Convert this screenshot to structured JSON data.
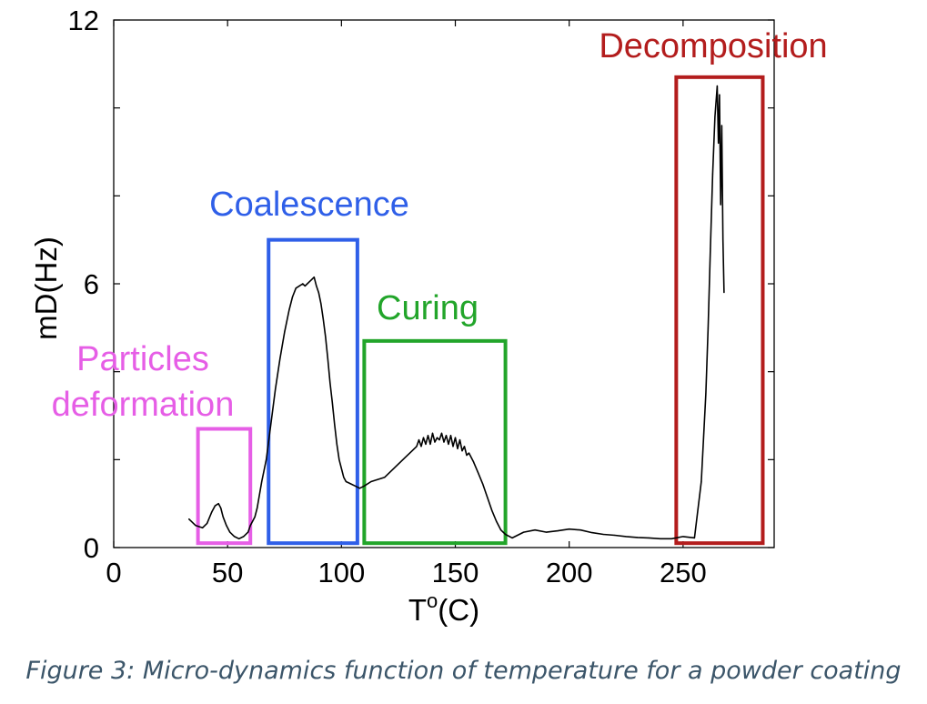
{
  "chart_data": {
    "type": "line",
    "title": "",
    "xlabel": "T°(C)",
    "xlabel_base": "T",
    "xlabel_sup": "o",
    "xlabel_unit": "(C)",
    "ylabel": "mD(Hz)",
    "xlim": [
      0,
      290
    ],
    "ylim": [
      0,
      12
    ],
    "xticks": [
      0,
      50,
      100,
      150,
      200,
      250
    ],
    "yticks": [
      0,
      6,
      12
    ],
    "yticks_minor": [
      2,
      4,
      8,
      10
    ],
    "grid": false,
    "series": [
      {
        "name": "mD",
        "color": "#000000",
        "x": [
          33,
          36,
          39,
          41,
          43,
          44.5,
          46,
          47,
          48,
          49.5,
          51,
          53,
          55,
          57,
          59,
          60,
          61,
          62,
          63,
          64,
          65,
          67,
          69,
          71,
          73,
          75,
          77,
          78.5,
          80,
          81.5,
          83,
          84,
          85,
          86,
          87,
          88,
          89,
          90,
          91,
          92,
          93,
          94,
          95,
          96,
          97,
          98,
          99,
          100,
          101,
          102,
          104,
          106,
          108,
          110,
          113,
          116,
          119,
          122,
          125,
          128,
          131,
          133,
          134,
          135,
          136,
          137,
          138,
          139,
          140,
          141,
          142,
          143,
          144,
          145,
          146,
          147,
          148,
          149,
          150,
          151,
          152,
          153,
          154,
          155,
          156,
          158,
          160,
          162,
          164,
          166,
          168,
          170,
          172,
          175,
          180,
          185,
          190,
          195,
          200,
          205,
          210,
          215,
          220,
          225,
          230,
          235,
          240,
          245,
          250,
          255,
          258,
          260,
          261,
          262,
          263,
          264,
          265,
          265.5,
          266,
          266.5,
          267,
          267.5,
          268
        ],
        "values": [
          0.65,
          0.5,
          0.45,
          0.55,
          0.8,
          0.95,
          1.0,
          0.9,
          0.7,
          0.5,
          0.35,
          0.25,
          0.2,
          0.25,
          0.35,
          0.5,
          0.6,
          0.7,
          0.9,
          1.2,
          1.5,
          2.0,
          2.8,
          3.6,
          4.3,
          4.9,
          5.4,
          5.7,
          5.9,
          5.95,
          6.0,
          5.95,
          6.0,
          6.05,
          6.1,
          6.15,
          5.95,
          5.8,
          5.55,
          5.2,
          4.8,
          4.3,
          3.75,
          3.3,
          2.8,
          2.35,
          2.0,
          1.8,
          1.6,
          1.5,
          1.45,
          1.4,
          1.35,
          1.4,
          1.5,
          1.55,
          1.6,
          1.75,
          1.9,
          2.05,
          2.2,
          2.3,
          2.45,
          2.3,
          2.5,
          2.35,
          2.55,
          2.35,
          2.6,
          2.4,
          2.5,
          2.45,
          2.6,
          2.4,
          2.55,
          2.35,
          2.55,
          2.3,
          2.5,
          2.25,
          2.45,
          2.2,
          2.3,
          2.1,
          2.15,
          1.95,
          1.7,
          1.45,
          1.15,
          0.85,
          0.6,
          0.4,
          0.3,
          0.22,
          0.35,
          0.4,
          0.35,
          0.38,
          0.42,
          0.4,
          0.34,
          0.3,
          0.28,
          0.25,
          0.23,
          0.22,
          0.2,
          0.2,
          0.25,
          0.22,
          1.5,
          3.5,
          5.0,
          6.8,
          8.5,
          9.8,
          10.5,
          9.2,
          10.3,
          7.8,
          9.6,
          7.0,
          5.8
        ]
      }
    ],
    "regions": [
      {
        "label": "Particles\ndeformation",
        "line1": "Particles",
        "line2": "deformation",
        "x_start": 37,
        "x_end": 60,
        "y_start": 0.1,
        "y_end": 2.7,
        "color": "#e65ee6"
      },
      {
        "label": "Coalescence",
        "x_start": 68,
        "x_end": 107,
        "y_start": 0.1,
        "y_end": 7.0,
        "color": "#2f5fe8"
      },
      {
        "label": "Curing",
        "x_start": 110,
        "x_end": 172,
        "y_start": 0.1,
        "y_end": 4.7,
        "color": "#22a52a"
      },
      {
        "label": "Decomposition",
        "x_start": 247,
        "x_end": 285,
        "y_start": 0.1,
        "y_end": 10.7,
        "color": "#b31d1d"
      }
    ]
  },
  "caption": "Figure 3: Micro-dynamics function of temperature for a powder coating"
}
